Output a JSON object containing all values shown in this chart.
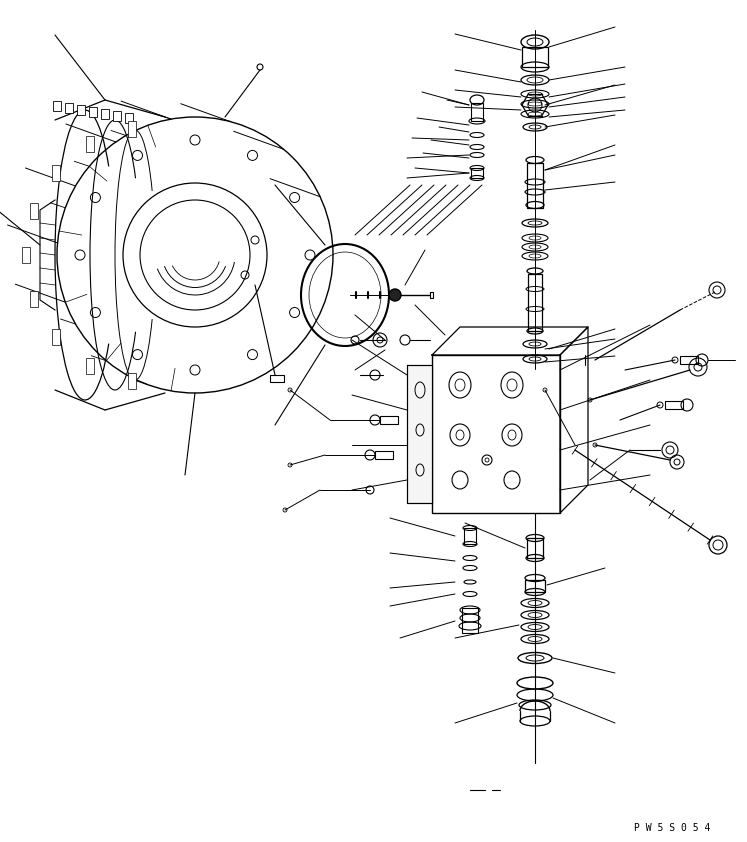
{
  "background_color": "#ffffff",
  "line_color": "#000000",
  "watermark_text": "P W 5 S 0 5 4",
  "figsize": [
    7.47,
    8.42
  ],
  "dpi": 100
}
